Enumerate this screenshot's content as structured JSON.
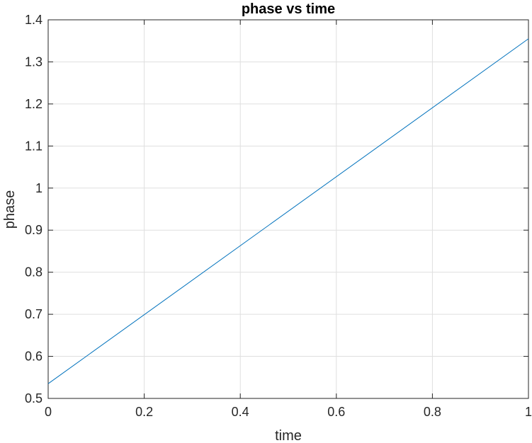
{
  "chart_data": {
    "type": "line",
    "title": "phase vs time",
    "xlabel": "time",
    "ylabel": "phase",
    "xlim": [
      0,
      1
    ],
    "ylim": [
      0.5,
      1.4
    ],
    "grid": true,
    "x_ticks": [
      "0",
      "0.2",
      "0.4",
      "0.6",
      "0.8",
      "1"
    ],
    "y_ticks": [
      "0.5",
      "0.6",
      "0.7",
      "0.8",
      "0.9",
      "1",
      "1.1",
      "1.2",
      "1.3",
      "1.4"
    ],
    "series": [
      {
        "color": "#0072BD",
        "x": [
          0,
          1
        ],
        "y": [
          0.535,
          1.355
        ]
      }
    ]
  }
}
